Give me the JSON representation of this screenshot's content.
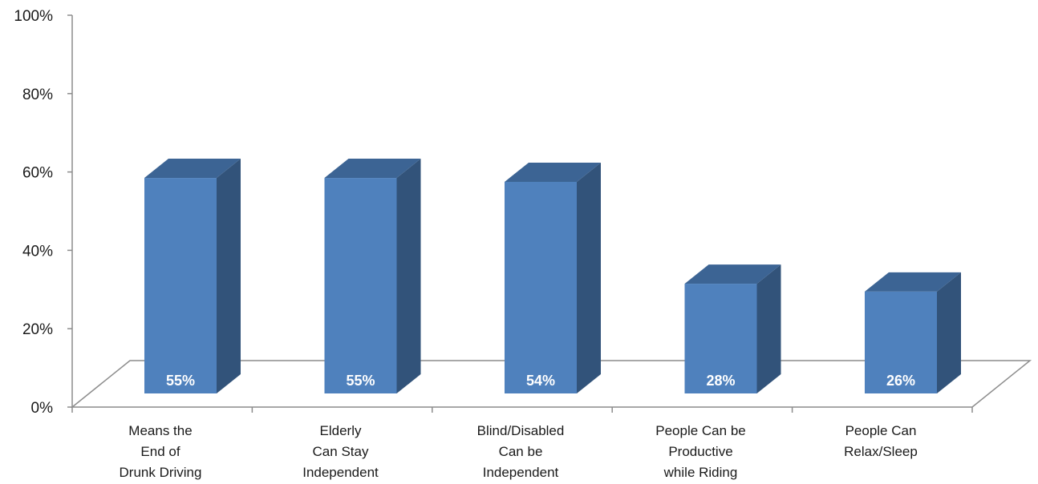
{
  "chart_data": {
    "type": "bar",
    "three_d": true,
    "categories": [
      [
        "Means the",
        "End of",
        "Drunk Driving"
      ],
      [
        "Elderly",
        "Can Stay",
        "Independent"
      ],
      [
        "Blind/Disabled",
        "Can be",
        "Independent"
      ],
      [
        "People Can be",
        "Productive",
        "while Riding"
      ],
      [
        "People Can",
        "Relax/Sleep"
      ]
    ],
    "values": [
      55,
      55,
      54,
      28,
      26
    ],
    "data_labels": [
      "55%",
      "55%",
      "54%",
      "28%",
      "26%"
    ],
    "y_ticks": [
      "0%",
      "20%",
      "40%",
      "60%",
      "80%",
      "100%"
    ],
    "ylim": [
      0,
      100
    ],
    "grid": false,
    "legend": "none",
    "colors": {
      "bar_front": "#4f81bd",
      "bar_top": "#3c6494",
      "bar_side": "#32537a",
      "axis": "#8c8c8c"
    }
  }
}
